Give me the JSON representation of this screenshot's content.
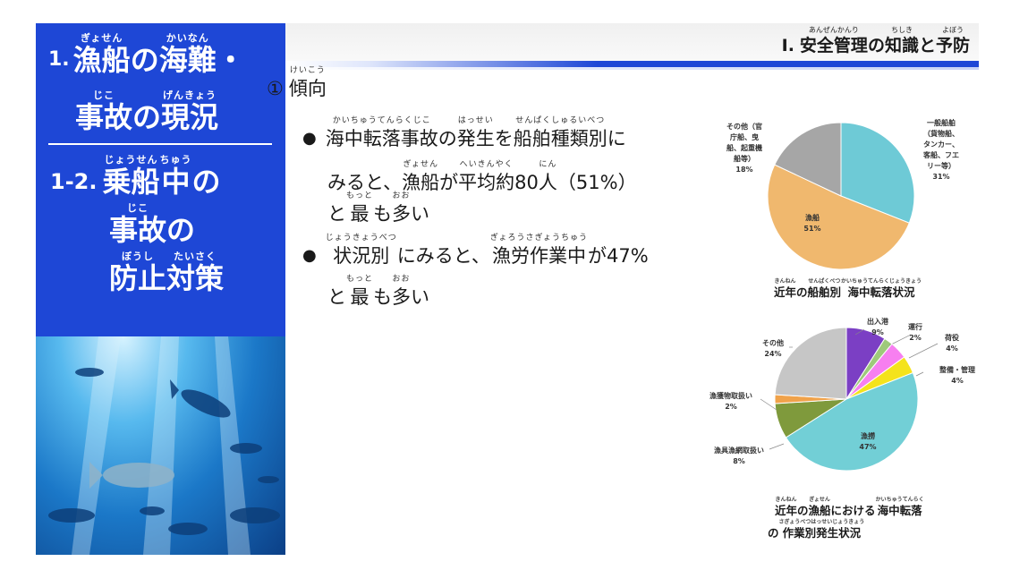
{
  "sidebar": {
    "num1": "1.",
    "w1": {
      "rt": "ぎょせん",
      "rb": "漁船"
    },
    "w2": {
      "rt": "",
      "rb": "の"
    },
    "w3": {
      "rt": "かいなん",
      "rb": "海難"
    },
    "w4": {
      "rt": "",
      "rb": "・"
    },
    "w5": {
      "rt": "じこ",
      "rb": "事故"
    },
    "w6": {
      "rt": "",
      "rb": "の"
    },
    "w7": {
      "rt": "げんきょう",
      "rb": "現況"
    },
    "num2": "1-2.",
    "w8": {
      "rt": "じょうせん",
      "rb": "乗船"
    },
    "w9": {
      "rt": "ちゅう",
      "rb": "中"
    },
    "w10": {
      "rt": "",
      "rb": "の"
    },
    "w11": {
      "rt": "じこ",
      "rb": "事故"
    },
    "w12": {
      "rt": "",
      "rb": "の"
    },
    "w13": {
      "rt": "ぼうし",
      "rb": "防止"
    },
    "w14": {
      "rt": "たいさく",
      "rb": "対策"
    }
  },
  "header": {
    "prefix": "Ⅰ.",
    "w1": {
      "rt": "あんぜんかんり",
      "rb": "安全管理"
    },
    "w2": "の",
    "w3": {
      "rt": "ちしき",
      "rb": "知識"
    },
    "w4": "と",
    "w5": {
      "rt": "よぼう",
      "rb": "予防"
    }
  },
  "content": {
    "heading_num": "①",
    "heading": {
      "rt": "けいこう",
      "rb": "傾向"
    },
    "b1_l1": [
      {
        "rt": "かいちゅうてんらくじこ",
        "rb": "海中転落事故"
      },
      {
        "rt": "",
        "rb": "の"
      },
      {
        "rt": "はっせい",
        "rb": "発生"
      },
      {
        "rt": "",
        "rb": "を"
      },
      {
        "rt": "せんぱくしゅるいべつ",
        "rb": "船舶種類別"
      },
      {
        "rt": "",
        "rb": "に"
      }
    ],
    "b1_l2": [
      {
        "rt": "",
        "rb": "みると、"
      },
      {
        "rt": "ぎょせん",
        "rb": "漁船"
      },
      {
        "rt": "",
        "rb": "が"
      },
      {
        "rt": "へいきんやく",
        "rb": "平均約"
      },
      {
        "rt": "",
        "rb": "80"
      },
      {
        "rt": "にん",
        "rb": "人"
      },
      {
        "rt": "",
        "rb": "（51%）"
      }
    ],
    "b1_l3": [
      {
        "rt": "",
        "rb": "と"
      },
      {
        "rt": "もっと",
        "rb": "最"
      },
      {
        "rt": "",
        "rb": "も"
      },
      {
        "rt": "おお",
        "rb": "多"
      },
      {
        "rt": "",
        "rb": "い"
      }
    ],
    "b2_l1": [
      {
        "rt": "じょうきょうべつ",
        "rb": "状況別"
      },
      {
        "rt": "",
        "rb": "にみると、"
      },
      {
        "rt": "ぎょろうさぎょうちゅう",
        "rb": "漁労作業中"
      },
      {
        "rt": "",
        "rb": "が47%"
      }
    ],
    "b2_l2": [
      {
        "rt": "",
        "rb": "と"
      },
      {
        "rt": "もっと",
        "rb": "最"
      },
      {
        "rt": "",
        "rb": "も"
      },
      {
        "rt": "おお",
        "rb": "多"
      },
      {
        "rt": "",
        "rb": "い"
      }
    ]
  },
  "chart_data": [
    {
      "type": "pie",
      "title_parts": [
        {
          "rt": "きんねん",
          "rb": "近年"
        },
        {
          "rt": "",
          "rb": "の"
        },
        {
          "rt": "せんぱくべつ",
          "rb": "船舶別"
        },
        {
          "rt": "かいちゅうてんらくじょうきょう",
          "rb": "海中転落状況"
        }
      ],
      "slices": [
        {
          "label": "一般船舶（貨物船、タンカー、客船、フェリー等）",
          "label_lines": [
            "一般船舶",
            "（貨物船、",
            "タンカー、",
            "客船、フエ",
            "リー等）",
            "31%"
          ],
          "value": 31,
          "color": "#6ecad6"
        },
        {
          "label": "漁船",
          "label_lines": [
            "漁船",
            "51%"
          ],
          "value": 51,
          "color": "#f0b86e"
        },
        {
          "label": "その他（官庁船、曳船、起重機船等）",
          "label_lines": [
            "その他（官",
            "庁船、曳",
            "船、起重機",
            "船等）",
            "18%"
          ],
          "value": 18,
          "color": "#a6a6a6"
        }
      ]
    },
    {
      "type": "pie",
      "title_parts": [
        {
          "rt": "きんねん",
          "rb": "近年"
        },
        {
          "rt": "",
          "rb": "の"
        },
        {
          "rt": "ぎょせん",
          "rb": "漁船"
        },
        {
          "rt": "",
          "rb": "における"
        },
        {
          "rt": "かいちゅうてんらく",
          "rb": "海中転落"
        }
      ],
      "title_parts2": [
        {
          "rt": "",
          "rb": "の"
        },
        {
          "rt": "さぎょうべつはっせいじょうきょう",
          "rb": "作業別発生状況"
        }
      ],
      "slices": [
        {
          "label": "出入港",
          "value": 9,
          "color": "#7b3fc4",
          "label_lines": [
            "出入港",
            "9%"
          ]
        },
        {
          "label": "運行",
          "value": 2,
          "color": "#9ec97a",
          "label_lines": [
            "運行",
            "2%"
          ]
        },
        {
          "label": "荷役",
          "value": 4,
          "color": "#f77ff0",
          "label_lines": [
            "荷役",
            "4%"
          ]
        },
        {
          "label": "整備・管理",
          "value": 4,
          "color": "#f4e31c",
          "label_lines": [
            "整備・管理",
            "4%"
          ]
        },
        {
          "label": "漁撈",
          "value": 47,
          "color": "#72cfd6",
          "label_lines": [
            "漁撈",
            "47%"
          ]
        },
        {
          "label": "漁具漁網取扱い",
          "value": 8,
          "color": "#7f9a3c",
          "label_lines": [
            "漁具漁網取扱い",
            "8%"
          ]
        },
        {
          "label": "漁獲物取扱い",
          "value": 2,
          "color": "#f0a24a",
          "label_lines": [
            "漁獲物取扱い",
            "2%"
          ]
        },
        {
          "label": "その他",
          "value": 24,
          "color": "#c6c6c6",
          "label_lines": [
            "その他",
            "24%"
          ]
        }
      ]
    }
  ]
}
